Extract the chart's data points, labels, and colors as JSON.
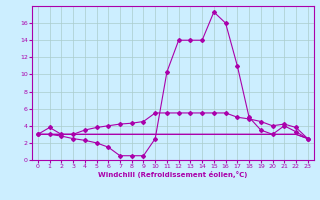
{
  "xlabel": "Windchill (Refroidissement éolien,°C)",
  "background_color": "#cceeff",
  "grid_color": "#aacccc",
  "line_color": "#aa00aa",
  "xlim": [
    -0.5,
    23.5
  ],
  "ylim": [
    0,
    18
  ],
  "xticks": [
    0,
    1,
    2,
    3,
    4,
    5,
    6,
    7,
    8,
    9,
    10,
    11,
    12,
    13,
    14,
    15,
    16,
    17,
    18,
    19,
    20,
    21,
    22,
    23
  ],
  "yticks": [
    0,
    2,
    4,
    6,
    8,
    10,
    12,
    14,
    16
  ],
  "main_x": [
    0,
    1,
    2,
    3,
    4,
    5,
    6,
    7,
    8,
    9,
    10,
    11,
    12,
    13,
    14,
    15,
    16,
    17,
    18,
    19,
    20,
    21,
    22,
    23
  ],
  "main_y": [
    3.0,
    3.0,
    2.8,
    2.5,
    2.3,
    2.0,
    1.5,
    0.5,
    0.5,
    0.5,
    2.5,
    10.3,
    14.0,
    14.0,
    14.0,
    17.3,
    16.0,
    11.0,
    5.0,
    3.5,
    3.0,
    4.0,
    3.3,
    2.5
  ],
  "flat1_x": [
    0,
    1,
    2,
    3,
    4,
    5,
    6,
    7,
    8,
    9,
    10,
    11,
    12,
    13,
    14,
    15,
    16,
    17,
    18,
    19,
    20,
    21,
    22,
    23
  ],
  "flat1_y": [
    3.0,
    3.0,
    3.0,
    3.0,
    3.0,
    3.0,
    3.0,
    3.0,
    3.0,
    3.0,
    3.0,
    3.0,
    3.0,
    3.0,
    3.0,
    3.0,
    3.0,
    3.0,
    3.0,
    3.0,
    3.0,
    3.0,
    3.0,
    2.5
  ],
  "flat2_x": [
    0,
    1,
    2,
    3,
    4,
    5,
    6,
    7,
    8,
    9,
    10,
    11,
    12,
    13,
    14,
    15,
    16,
    17,
    18,
    19,
    20,
    21,
    22,
    23
  ],
  "flat2_y": [
    3.0,
    3.0,
    3.0,
    3.0,
    3.0,
    3.0,
    3.0,
    3.0,
    3.0,
    3.0,
    3.0,
    3.0,
    3.0,
    3.0,
    3.0,
    3.0,
    3.0,
    3.0,
    3.0,
    3.0,
    3.0,
    3.0,
    3.0,
    2.5
  ],
  "upper_x": [
    0,
    1,
    2,
    3,
    4,
    5,
    6,
    7,
    8,
    9,
    10,
    11,
    12,
    13,
    14,
    15,
    16,
    17,
    18,
    19,
    20,
    21,
    22,
    23
  ],
  "upper_y": [
    3.0,
    3.8,
    3.0,
    3.0,
    3.5,
    3.8,
    4.0,
    4.2,
    4.3,
    4.5,
    5.5,
    5.5,
    5.5,
    5.5,
    5.5,
    5.5,
    5.5,
    5.0,
    4.8,
    4.5,
    4.0,
    4.2,
    3.8,
    2.5
  ]
}
